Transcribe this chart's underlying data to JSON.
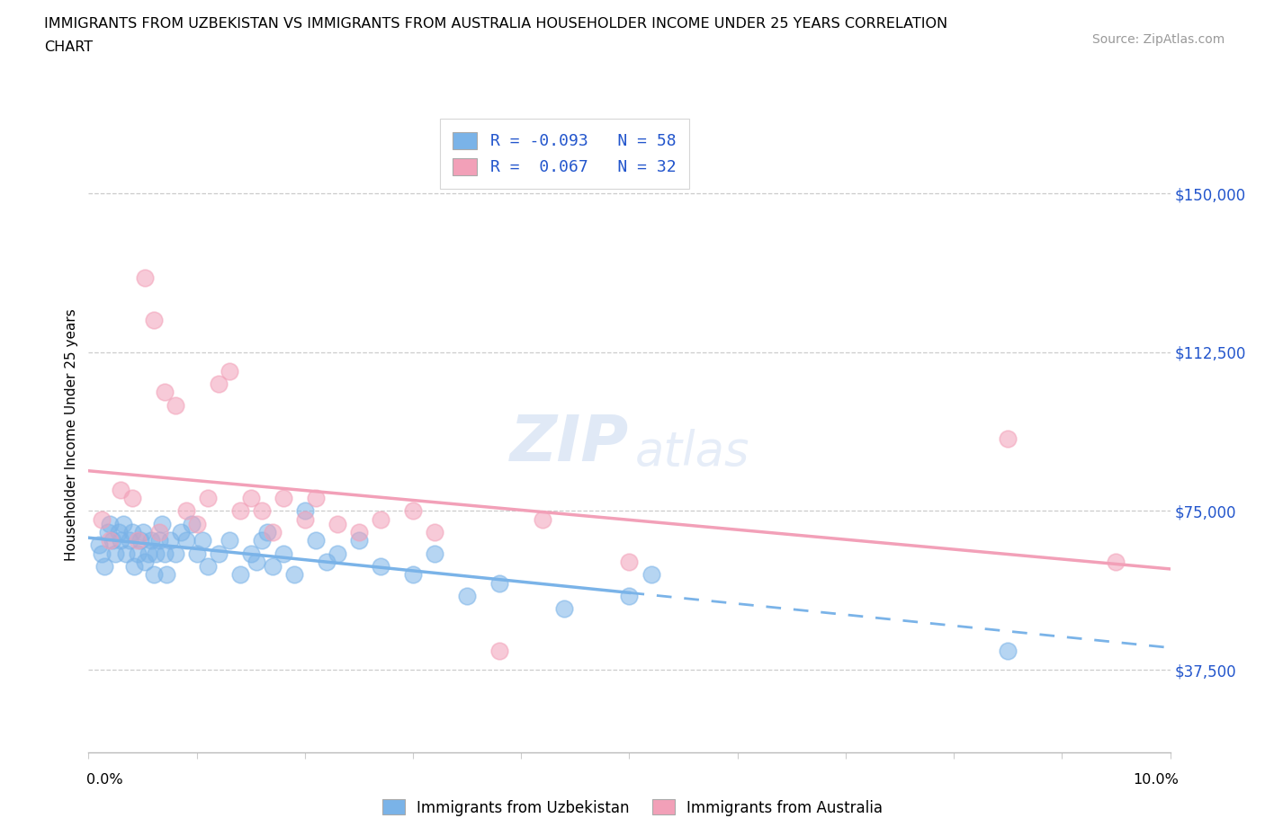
{
  "title_line1": "IMMIGRANTS FROM UZBEKISTAN VS IMMIGRANTS FROM AUSTRALIA HOUSEHOLDER INCOME UNDER 25 YEARS CORRELATION",
  "title_line2": "CHART",
  "source_text": "Source: ZipAtlas.com",
  "ylabel": "Householder Income Under 25 years",
  "yticks": [
    37500,
    75000,
    112500,
    150000
  ],
  "ytick_labels": [
    "$37,500",
    "$75,000",
    "$112,500",
    "$150,000"
  ],
  "xlim": [
    0.0,
    10.0
  ],
  "ylim": [
    18000,
    168000
  ],
  "watermark": "ZIPatlas",
  "color_uzbekistan": "#7ab3e8",
  "color_australia": "#f2a0b8",
  "background_color": "#ffffff",
  "uzbekistan_x": [
    0.1,
    0.12,
    0.15,
    0.18,
    0.2,
    0.22,
    0.25,
    0.28,
    0.3,
    0.32,
    0.35,
    0.38,
    0.4,
    0.42,
    0.45,
    0.48,
    0.5,
    0.52,
    0.55,
    0.58,
    0.6,
    0.62,
    0.65,
    0.68,
    0.7,
    0.72,
    0.75,
    0.8,
    0.85,
    0.9,
    0.95,
    1.0,
    1.05,
    1.1,
    1.2,
    1.3,
    1.4,
    1.5,
    1.55,
    1.6,
    1.65,
    1.7,
    1.8,
    1.9,
    2.0,
    2.1,
    2.2,
    2.3,
    2.5,
    2.7,
    3.0,
    3.2,
    3.8,
    4.4,
    5.0,
    5.2,
    8.5,
    3.5
  ],
  "uzbekistan_y": [
    67000,
    65000,
    62000,
    70000,
    72000,
    68000,
    65000,
    70000,
    68000,
    72000,
    65000,
    68000,
    70000,
    62000,
    65000,
    68000,
    70000,
    63000,
    65000,
    68000,
    60000,
    65000,
    68000,
    72000,
    65000,
    60000,
    68000,
    65000,
    70000,
    68000,
    72000,
    65000,
    68000,
    62000,
    65000,
    68000,
    60000,
    65000,
    63000,
    68000,
    70000,
    62000,
    65000,
    60000,
    75000,
    68000,
    63000,
    65000,
    68000,
    62000,
    60000,
    65000,
    58000,
    52000,
    55000,
    60000,
    42000,
    55000
  ],
  "australia_x": [
    0.12,
    0.2,
    0.3,
    0.4,
    0.52,
    0.6,
    0.7,
    0.8,
    0.9,
    1.0,
    1.1,
    1.2,
    1.3,
    1.4,
    1.5,
    1.6,
    1.7,
    1.8,
    2.0,
    2.1,
    2.3,
    2.5,
    2.7,
    3.0,
    3.2,
    3.8,
    4.2,
    5.0,
    8.5,
    9.5,
    0.65,
    0.45
  ],
  "australia_y": [
    73000,
    68000,
    80000,
    78000,
    130000,
    120000,
    103000,
    100000,
    75000,
    72000,
    78000,
    105000,
    108000,
    75000,
    78000,
    75000,
    70000,
    78000,
    73000,
    78000,
    72000,
    70000,
    73000,
    75000,
    70000,
    42000,
    73000,
    63000,
    92000,
    63000,
    70000,
    68000
  ]
}
